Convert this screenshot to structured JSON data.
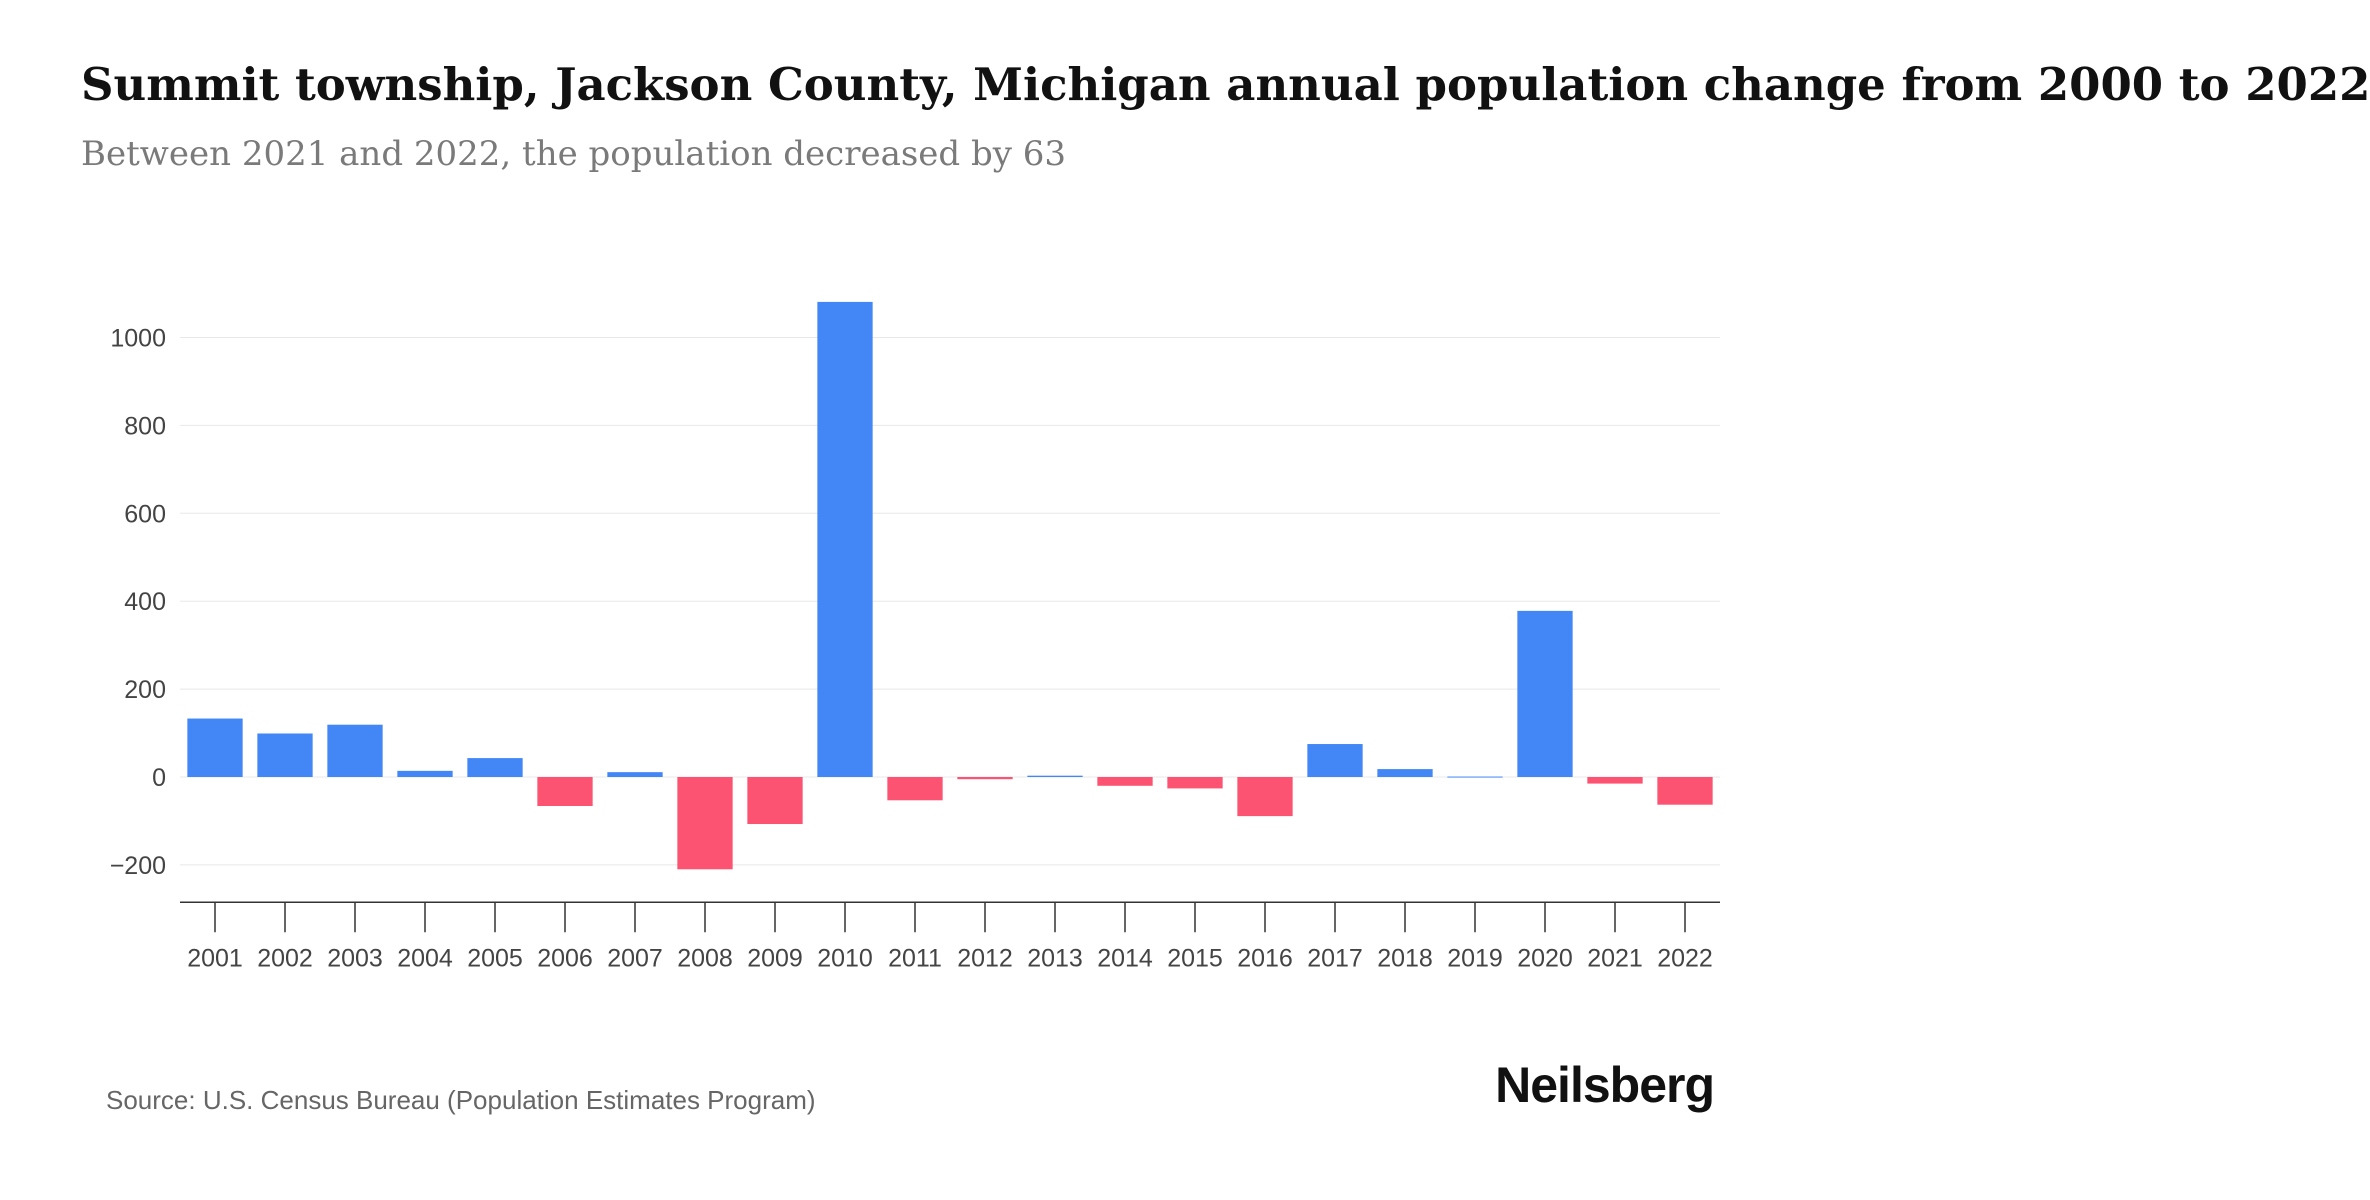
{
  "title": "Summit township, Jackson County, Michigan annual population change from 2000 to 2022",
  "subtitle": "Between 2021 and 2022, the population decreased by 63",
  "source": "Source: U.S. Census Bureau (Population Estimates Program)",
  "brand": "Neilsberg",
  "colors": {
    "positive": "#4287f5",
    "negative": "#fc5372",
    "grid": "#e8e8e8",
    "axis": "#333333"
  },
  "chart_data": {
    "type": "bar",
    "categories": [
      "2001",
      "2002",
      "2003",
      "2004",
      "2005",
      "2006",
      "2007",
      "2008",
      "2009",
      "2010",
      "2011",
      "2012",
      "2013",
      "2014",
      "2015",
      "2016",
      "2017",
      "2018",
      "2019",
      "2020",
      "2021",
      "2022"
    ],
    "values": [
      133,
      99,
      119,
      14,
      43,
      -66,
      11,
      -210,
      -107,
      1081,
      -53,
      -5,
      3,
      -20,
      -26,
      -89,
      75,
      18,
      1,
      378,
      -15,
      -63
    ],
    "yticks": [
      -200,
      0,
      200,
      400,
      600,
      800,
      1000
    ],
    "ytick_labels": [
      "−200",
      "0",
      "200",
      "400",
      "600",
      "800",
      "1000"
    ],
    "ylim": [
      -285,
      1081
    ],
    "grid": true,
    "xlabel": "",
    "ylabel": ""
  }
}
